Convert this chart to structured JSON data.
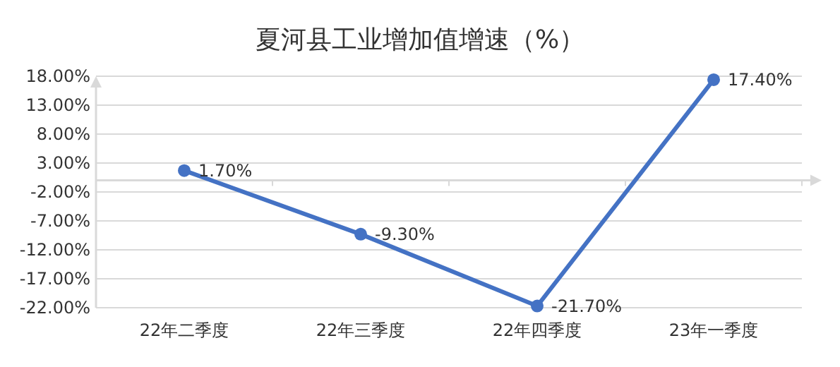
{
  "chart_data": {
    "type": "line",
    "title": "夏河县工业增加值增速（%）",
    "categories": [
      "22年二季度",
      "22年三季度",
      "22年四季度",
      "23年一季度"
    ],
    "series": [
      {
        "color": "#4472c4",
        "values": [
          1.7,
          -9.3,
          -21.7,
          17.4
        ],
        "value_labels": [
          "1.70%",
          "-9.30%",
          "-21.70%",
          "17.40%"
        ]
      }
    ],
    "ylim": [
      -22,
      18
    ],
    "yticks": [
      {
        "value": 18,
        "label": "18.00%"
      },
      {
        "value": 13,
        "label": "13.00%"
      },
      {
        "value": 8,
        "label": "8.00%"
      },
      {
        "value": 3,
        "label": "3.00%"
      },
      {
        "value": -2,
        "label": "-2.00%"
      },
      {
        "value": -7,
        "label": "-7.00%"
      },
      {
        "value": -12,
        "label": "-12.00%"
      },
      {
        "value": -17,
        "label": "-17.00%"
      },
      {
        "value": -22,
        "label": "-22.00%"
      }
    ],
    "grid": "y",
    "marker": "circle",
    "line_style": "solid"
  }
}
